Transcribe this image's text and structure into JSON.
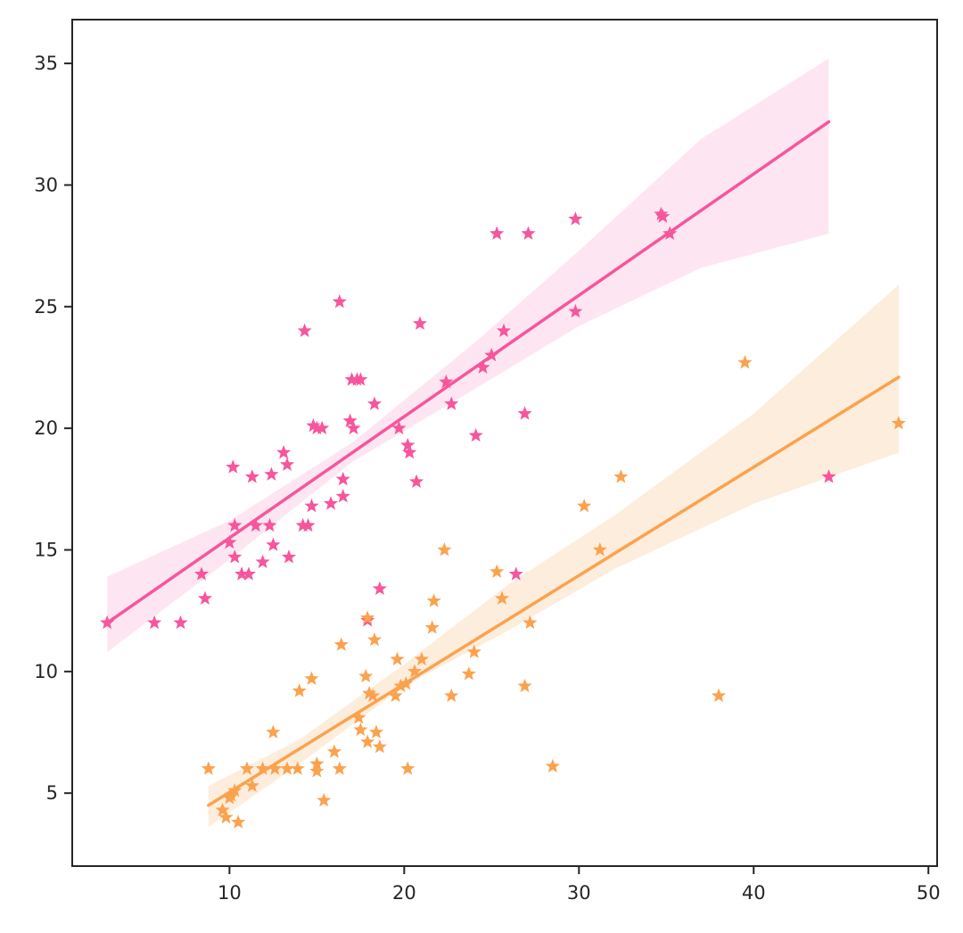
{
  "chart_data": {
    "type": "scatter",
    "title": "",
    "xlabel": "",
    "ylabel": "",
    "xlim": [
      1,
      50.5
    ],
    "ylim": [
      2,
      36.8
    ],
    "xticks": [
      10,
      20,
      30,
      40,
      50
    ],
    "yticks": [
      5,
      10,
      15,
      20,
      25,
      30,
      35
    ],
    "grid": false,
    "legend": "none",
    "marker": "star",
    "series": [
      {
        "color": "#f7559c",
        "band_color": "#fde3f0",
        "points": [
          [
            3,
            12
          ],
          [
            5.7,
            12
          ],
          [
            7.2,
            12
          ],
          [
            8.4,
            14
          ],
          [
            8.6,
            13
          ],
          [
            10,
            15.3
          ],
          [
            10.2,
            18.4
          ],
          [
            10.3,
            16
          ],
          [
            10.3,
            14.7
          ],
          [
            10.7,
            14
          ],
          [
            11.1,
            14
          ],
          [
            11.3,
            18
          ],
          [
            11.5,
            16
          ],
          [
            11.9,
            14.5
          ],
          [
            12.3,
            16
          ],
          [
            12.4,
            18.1
          ],
          [
            12.5,
            15.2
          ],
          [
            13.1,
            19
          ],
          [
            13.3,
            18.5
          ],
          [
            13.4,
            14.7
          ],
          [
            14.2,
            16
          ],
          [
            14.3,
            24
          ],
          [
            14.5,
            16
          ],
          [
            14.7,
            16.8
          ],
          [
            14.8,
            20.1
          ],
          [
            15,
            20
          ],
          [
            15.3,
            20
          ],
          [
            15.8,
            16.9
          ],
          [
            16.3,
            25.2
          ],
          [
            16.5,
            17.9
          ],
          [
            16.5,
            17.2
          ],
          [
            16.9,
            20.3
          ],
          [
            17,
            22
          ],
          [
            17.1,
            20
          ],
          [
            17.3,
            22
          ],
          [
            17.5,
            22
          ],
          [
            17.9,
            12.1
          ],
          [
            18.3,
            21
          ],
          [
            18.6,
            13.4
          ],
          [
            19.7,
            20
          ],
          [
            20.2,
            19.3
          ],
          [
            20.3,
            19
          ],
          [
            20.7,
            17.8
          ],
          [
            20.9,
            24.3
          ],
          [
            22.4,
            21.9
          ],
          [
            22.7,
            21
          ],
          [
            24.1,
            19.7
          ],
          [
            24.5,
            22.5
          ],
          [
            25,
            23
          ],
          [
            25.3,
            28
          ],
          [
            25.7,
            24
          ],
          [
            26.4,
            14
          ],
          [
            26.9,
            20.6
          ],
          [
            27.1,
            28
          ],
          [
            29.8,
            24.8
          ],
          [
            29.8,
            28.6
          ],
          [
            34.7,
            28.8
          ],
          [
            34.8,
            28.7
          ],
          [
            35.2,
            28
          ],
          [
            44.3,
            18
          ]
        ],
        "fit": {
          "x": [
            3,
            44.3
          ],
          "y": [
            12,
            32.6
          ]
        },
        "band": {
          "x": [
            3,
            10,
            17,
            24,
            30,
            37,
            44.3
          ],
          "upper": [
            13.9,
            16.2,
            19.4,
            23.5,
            27.3,
            31.9,
            35.2
          ],
          "lower": [
            10.8,
            14.6,
            18.6,
            21.6,
            24.2,
            26.6,
            28
          ]
        }
      },
      {
        "color": "#fba24e",
        "band_color": "#fdebd8",
        "points": [
          [
            8.8,
            6
          ],
          [
            9.6,
            4.3
          ],
          [
            9.8,
            4
          ],
          [
            10,
            4.8
          ],
          [
            10.1,
            4.9
          ],
          [
            10.3,
            5.1
          ],
          [
            10.5,
            3.8
          ],
          [
            11,
            6
          ],
          [
            11.3,
            5.3
          ],
          [
            11.9,
            6
          ],
          [
            12.5,
            7.5
          ],
          [
            12.6,
            6
          ],
          [
            13.3,
            6
          ],
          [
            13.9,
            6
          ],
          [
            14,
            9.2
          ],
          [
            14.7,
            9.7
          ],
          [
            15,
            6.2
          ],
          [
            15,
            5.9
          ],
          [
            15.4,
            4.7
          ],
          [
            16,
            6.7
          ],
          [
            16.3,
            6
          ],
          [
            16.4,
            11.1
          ],
          [
            17.4,
            8.1
          ],
          [
            17.5,
            7.6
          ],
          [
            17.8,
            9.8
          ],
          [
            17.9,
            12.2
          ],
          [
            17.9,
            7.1
          ],
          [
            18,
            9.1
          ],
          [
            18.2,
            9
          ],
          [
            18.3,
            11.3
          ],
          [
            18.4,
            7.5
          ],
          [
            18.6,
            6.9
          ],
          [
            19.5,
            9
          ],
          [
            19.6,
            10.5
          ],
          [
            19.8,
            9.4
          ],
          [
            20.1,
            9.5
          ],
          [
            20.2,
            6
          ],
          [
            20.6,
            10
          ],
          [
            21,
            10.5
          ],
          [
            21.6,
            11.8
          ],
          [
            21.7,
            12.9
          ],
          [
            22.3,
            15
          ],
          [
            22.7,
            9
          ],
          [
            23.7,
            9.9
          ],
          [
            24,
            10.8
          ],
          [
            25.3,
            14.1
          ],
          [
            25.6,
            13
          ],
          [
            26.9,
            9.4
          ],
          [
            27.2,
            12
          ],
          [
            28.5,
            6.1
          ],
          [
            30.3,
            16.8
          ],
          [
            31.2,
            15
          ],
          [
            32.4,
            18
          ],
          [
            38,
            9
          ],
          [
            39.5,
            22.7
          ],
          [
            48.3,
            20.2
          ]
        ],
        "fit": {
          "x": [
            8.8,
            48.3
          ],
          "y": [
            4.5,
            22.1
          ]
        },
        "band": {
          "x": [
            8.8,
            14,
            20,
            26,
            32,
            40,
            48.3
          ],
          "upper": [
            5.3,
            7.2,
            10.3,
            13.6,
            16.4,
            20.6,
            25.9
          ],
          "lower": [
            3.6,
            6.2,
            9.4,
            11.7,
            14.2,
            16.9,
            19
          ]
        }
      }
    ]
  }
}
